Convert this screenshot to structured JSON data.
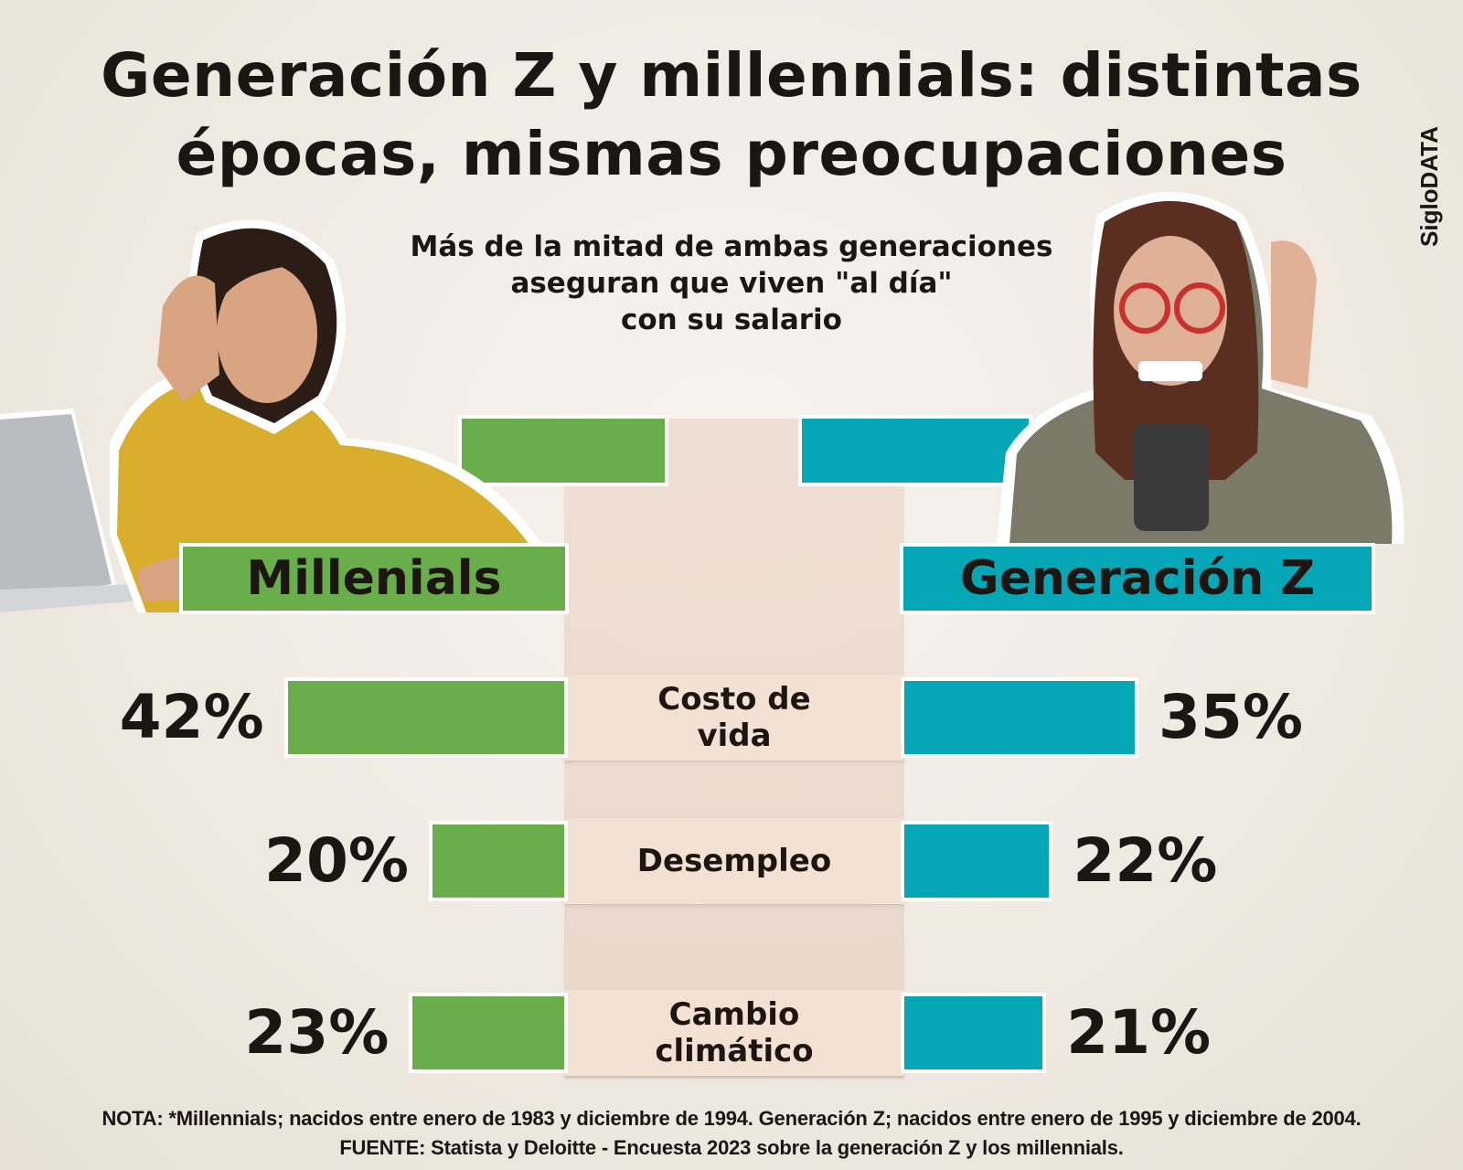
{
  "header": {
    "title_line1": "Generación Z y millennials: distintas",
    "title_line2": "épocas, mismas preocupaciones",
    "subtitle_line1": "Más de la mitad de ambas generaciones",
    "subtitle_line2": "aseguran que viven \"al día\"",
    "subtitle_line3": "con su salario",
    "brand": "SigloDATA"
  },
  "colors": {
    "millennials": "#6aae4c",
    "gen_z": "#05a6b5",
    "category_bg": "#f3e2d3"
  },
  "chart_data": {
    "type": "bar",
    "categories": [
      "Costo de vida",
      "Desempleo",
      "Cambio climático"
    ],
    "category_lines": [
      [
        "Costo de",
        "vida"
      ],
      [
        "Desempleo"
      ],
      [
        "Cambio",
        "climático"
      ]
    ],
    "series": [
      {
        "name": "Millenials",
        "values": [
          42,
          20,
          23
        ],
        "labels": [
          "42%",
          "20%",
          "23%"
        ]
      },
      {
        "name": "Generación Z",
        "values": [
          35,
          22,
          21
        ],
        "labels": [
          "35%",
          "22%",
          "21%"
        ]
      }
    ],
    "unit": "%",
    "orientation": "butterfly"
  },
  "footer": {
    "note": "NOTA: *Millennials; nacidos entre enero de 1983 y diciembre de 1994. Generación Z; nacidos entre enero de 1995 y diciembre de 2004.",
    "source": "FUENTE: Statista y Deloitte - Encuesta 2023 sobre la generación Z y los millennials."
  }
}
